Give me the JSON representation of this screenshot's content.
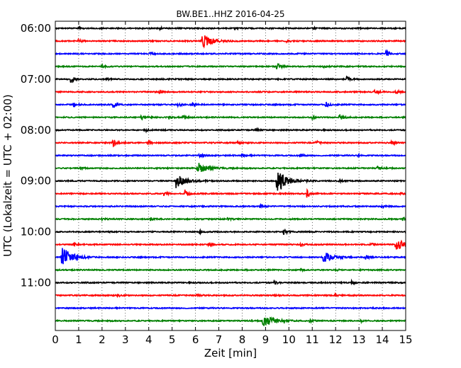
{
  "chart_data": {
    "type": "line",
    "title": "BW.BE1..HHZ 2016-04-25",
    "xlabel": "Zeit  [min]",
    "ylabel": "UTC (Lokalzeit = UTC + 02:00)",
    "xlim": [
      0,
      15
    ],
    "x_ticks": [
      "0",
      "1",
      "2",
      "3",
      "4",
      "5",
      "6",
      "7",
      "8",
      "9",
      "10",
      "11",
      "12",
      "13",
      "14",
      "15"
    ],
    "y_ticks": [
      {
        "label": "06:00",
        "row": 0
      },
      {
        "label": "07:00",
        "row": 4
      },
      {
        "label": "08:00",
        "row": 8
      },
      {
        "label": "09:00",
        "row": 12
      },
      {
        "label": "10:00",
        "row": 16
      },
      {
        "label": "11:00",
        "row": 20
      }
    ],
    "grid": "vertical dotted",
    "row_colors": [
      "#000000",
      "#ff0000",
      "#0000ff",
      "#008000"
    ],
    "trace_start": "06:00",
    "trace_minutes": 15,
    "traces": [
      {
        "start": "06:00",
        "events": [
          {
            "t": 1.0,
            "amp": 2
          },
          {
            "t": 4.5,
            "amp": 1.5
          },
          {
            "t": 7.7,
            "amp": 1.5
          },
          {
            "t": 11.1,
            "amp": 1.5
          }
        ]
      },
      {
        "start": "06:15",
        "events": [
          {
            "t": 1.0,
            "amp": 3
          },
          {
            "t": 6.3,
            "amp": 14
          },
          {
            "t": 9.9,
            "amp": 2
          }
        ]
      },
      {
        "start": "06:30",
        "events": [
          {
            "t": 4.1,
            "amp": 2
          },
          {
            "t": 14.2,
            "amp": 5
          }
        ]
      },
      {
        "start": "06:45",
        "events": [
          {
            "t": 2.0,
            "amp": 2
          },
          {
            "t": 9.5,
            "amp": 7
          },
          {
            "t": 11.5,
            "amp": 2
          }
        ]
      },
      {
        "start": "07:00",
        "events": [
          {
            "t": 0.7,
            "amp": 7
          },
          {
            "t": 2.2,
            "amp": 2
          },
          {
            "t": 12.5,
            "amp": 4
          }
        ]
      },
      {
        "start": "07:15",
        "events": [
          {
            "t": 4.5,
            "amp": 2
          },
          {
            "t": 13.7,
            "amp": 4
          },
          {
            "t": 14.6,
            "amp": 3
          }
        ]
      },
      {
        "start": "07:30",
        "events": [
          {
            "t": 0.8,
            "amp": 4
          },
          {
            "t": 2.5,
            "amp": 6
          },
          {
            "t": 5.3,
            "amp": 3
          },
          {
            "t": 5.9,
            "amp": 3
          },
          {
            "t": 11.6,
            "amp": 5
          }
        ]
      },
      {
        "start": "07:45",
        "events": [
          {
            "t": 3.7,
            "amp": 5
          },
          {
            "t": 4.9,
            "amp": 4
          },
          {
            "t": 5.5,
            "amp": 3
          },
          {
            "t": 11.0,
            "amp": 4
          },
          {
            "t": 12.2,
            "amp": 6
          }
        ]
      },
      {
        "start": "08:00",
        "events": [
          {
            "t": 3.9,
            "amp": 2
          },
          {
            "t": 8.6,
            "amp": 2
          }
        ]
      },
      {
        "start": "08:15",
        "events": [
          {
            "t": 2.5,
            "amp": 6
          },
          {
            "t": 4.0,
            "amp": 3
          },
          {
            "t": 7.8,
            "amp": 2
          },
          {
            "t": 11.2,
            "amp": 3
          },
          {
            "t": 14.4,
            "amp": 4
          }
        ]
      },
      {
        "start": "08:30",
        "events": [
          {
            "t": 6.2,
            "amp": 3
          },
          {
            "t": 8.0,
            "amp": 4
          },
          {
            "t": 10.5,
            "amp": 3
          },
          {
            "t": 13.0,
            "amp": 2
          }
        ]
      },
      {
        "start": "08:45",
        "events": [
          {
            "t": 1.1,
            "amp": 2
          },
          {
            "t": 6.1,
            "amp": 11
          },
          {
            "t": 13.8,
            "amp": 3
          }
        ]
      },
      {
        "start": "09:00",
        "events": [
          {
            "t": 5.2,
            "amp": 14
          },
          {
            "t": 9.5,
            "amp": 26
          },
          {
            "t": 12.2,
            "amp": 2
          }
        ]
      },
      {
        "start": "09:15",
        "events": [
          {
            "t": 4.7,
            "amp": 4
          },
          {
            "t": 5.6,
            "amp": 7
          },
          {
            "t": 10.8,
            "amp": 8
          },
          {
            "t": 14.8,
            "amp": 2
          }
        ]
      },
      {
        "start": "09:30",
        "events": [
          {
            "t": 8.8,
            "amp": 4
          },
          {
            "t": 14.0,
            "amp": 2
          }
        ]
      },
      {
        "start": "09:45",
        "events": [
          {
            "t": 2.0,
            "amp": 2
          },
          {
            "t": 4.1,
            "amp": 2
          },
          {
            "t": 7.4,
            "amp": 2
          },
          {
            "t": 14.9,
            "amp": 3
          }
        ]
      },
      {
        "start": "10:00",
        "events": [
          {
            "t": 2.3,
            "amp": 2
          },
          {
            "t": 6.2,
            "amp": 3
          },
          {
            "t": 9.8,
            "amp": 5
          }
        ]
      },
      {
        "start": "10:15",
        "events": [
          {
            "t": 0.8,
            "amp": 3
          },
          {
            "t": 6.6,
            "amp": 2
          },
          {
            "t": 10.5,
            "amp": 3
          },
          {
            "t": 13.5,
            "amp": 3
          },
          {
            "t": 14.6,
            "amp": 12
          }
        ]
      },
      {
        "start": "10:30",
        "events": [
          {
            "t": 0.3,
            "amp": 22
          },
          {
            "t": 11.5,
            "amp": 11
          },
          {
            "t": 13.3,
            "amp": 4
          }
        ]
      },
      {
        "start": "10:45",
        "events": [
          {
            "t": 10.5,
            "amp": 2
          },
          {
            "t": 12.0,
            "amp": 2
          }
        ]
      },
      {
        "start": "11:00",
        "events": [
          {
            "t": 9.4,
            "amp": 3
          },
          {
            "t": 12.7,
            "amp": 3
          }
        ]
      },
      {
        "start": "11:15",
        "events": [
          {
            "t": 2.7,
            "amp": 2
          },
          {
            "t": 6.1,
            "amp": 2
          },
          {
            "t": 9.4,
            "amp": 2
          },
          {
            "t": 12.0,
            "amp": 2
          }
        ]
      },
      {
        "start": "11:30",
        "events": []
      },
      {
        "start": "11:45",
        "events": [
          {
            "t": 8.9,
            "amp": 14
          },
          {
            "t": 10.9,
            "amp": 3
          },
          {
            "t": 13.1,
            "amp": 2
          }
        ]
      }
    ]
  }
}
